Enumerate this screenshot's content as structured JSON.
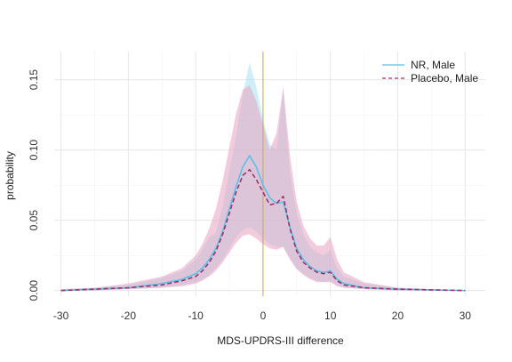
{
  "chart_data": {
    "type": "line",
    "xlabel": "MDS-UPDRS-III difference",
    "ylabel": "probability",
    "xlim": [
      -31,
      33
    ],
    "ylim": [
      -0.004,
      0.17
    ],
    "x_ticks": [
      -30,
      -20,
      -10,
      0,
      10,
      20,
      30
    ],
    "x_tick_labels": [
      "-30",
      "-20",
      "-10",
      "0",
      "10",
      "20",
      "30"
    ],
    "y_ticks": [
      0.0,
      0.05,
      0.1,
      0.15
    ],
    "y_tick_labels": [
      "0.00",
      "0.05",
      "0.10",
      "0.15"
    ],
    "grid": true,
    "vline": 0,
    "legend_position": "top-right",
    "colors": {
      "nr_line": "#5bc0e8",
      "nr_band": "#a8e2f2",
      "placebo_line": "#a3306b",
      "placebo_band": "#e8a3c0",
      "vline": "#c8a84a",
      "grid": "#e6e6e6"
    },
    "x": [
      -30,
      -25,
      -20,
      -15,
      -12,
      -10,
      -9,
      -8,
      -7,
      -6,
      -5,
      -4,
      -3,
      -2,
      -1,
      0,
      1,
      2,
      3,
      4,
      5,
      6,
      7,
      8,
      9,
      10,
      11,
      12,
      15,
      20,
      25,
      30
    ],
    "series": [
      {
        "name": "NR, Male",
        "line": "solid",
        "values": [
          0.0,
          0.001,
          0.002,
          0.005,
          0.008,
          0.012,
          0.016,
          0.022,
          0.03,
          0.042,
          0.058,
          0.074,
          0.088,
          0.096,
          0.088,
          0.075,
          0.066,
          0.062,
          0.063,
          0.045,
          0.03,
          0.022,
          0.017,
          0.014,
          0.013,
          0.014,
          0.008,
          0.005,
          0.002,
          0.001,
          0.0005,
          0.0
        ],
        "lower": [
          0.0,
          0.0,
          0.001,
          0.002,
          0.004,
          0.006,
          0.008,
          0.011,
          0.016,
          0.022,
          0.03,
          0.038,
          0.043,
          0.045,
          0.042,
          0.037,
          0.033,
          0.031,
          0.031,
          0.023,
          0.016,
          0.012,
          0.009,
          0.007,
          0.006,
          0.007,
          0.004,
          0.002,
          0.001,
          0.0,
          0.0,
          0.0
        ],
        "upper": [
          0.001,
          0.002,
          0.004,
          0.009,
          0.014,
          0.022,
          0.029,
          0.038,
          0.041,
          0.06,
          0.085,
          0.11,
          0.14,
          0.162,
          0.145,
          0.122,
          0.104,
          0.1,
          0.142,
          0.084,
          0.055,
          0.04,
          0.031,
          0.027,
          0.025,
          0.029,
          0.016,
          0.01,
          0.005,
          0.002,
          0.001,
          0.0
        ]
      },
      {
        "name": "Placebo, Male",
        "line": "dashed",
        "values": [
          0.0,
          0.001,
          0.002,
          0.004,
          0.007,
          0.01,
          0.014,
          0.02,
          0.028,
          0.04,
          0.055,
          0.07,
          0.082,
          0.086,
          0.079,
          0.07,
          0.061,
          0.062,
          0.067,
          0.044,
          0.028,
          0.02,
          0.016,
          0.013,
          0.012,
          0.013,
          0.007,
          0.004,
          0.002,
          0.001,
          0.0005,
          0.0
        ],
        "lower": [
          0.0,
          0.0,
          0.001,
          0.002,
          0.003,
          0.005,
          0.007,
          0.01,
          0.014,
          0.02,
          0.027,
          0.034,
          0.039,
          0.04,
          0.037,
          0.033,
          0.03,
          0.029,
          0.031,
          0.022,
          0.015,
          0.011,
          0.008,
          0.006,
          0.006,
          0.006,
          0.003,
          0.002,
          0.001,
          0.0,
          0.0,
          0.0
        ],
        "upper": [
          0.001,
          0.002,
          0.005,
          0.01,
          0.016,
          0.025,
          0.033,
          0.044,
          0.058,
          0.078,
          0.102,
          0.126,
          0.143,
          0.146,
          0.135,
          0.118,
          0.1,
          0.112,
          0.145,
          0.096,
          0.063,
          0.046,
          0.037,
          0.032,
          0.032,
          0.038,
          0.022,
          0.013,
          0.006,
          0.002,
          0.001,
          0.0
        ]
      }
    ]
  }
}
